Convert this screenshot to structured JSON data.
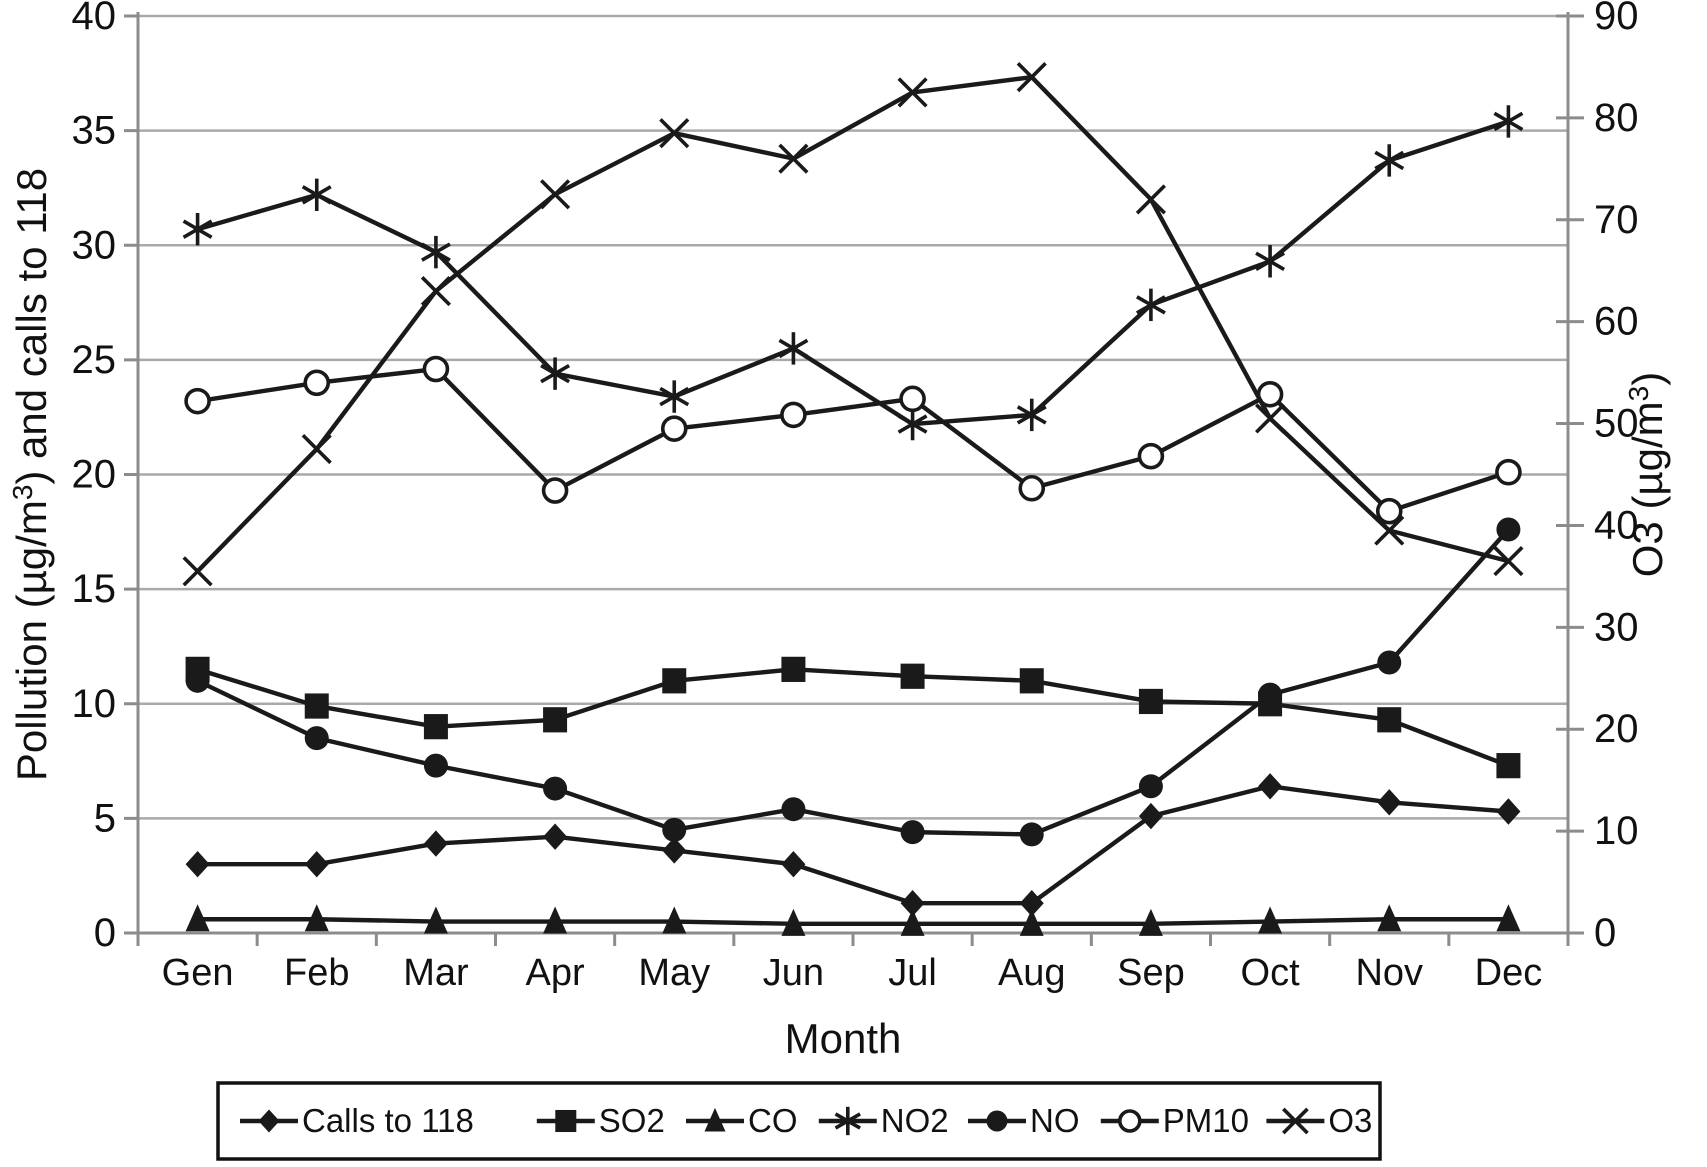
{
  "chart_data": {
    "type": "line",
    "title": "",
    "x_axis": {
      "label": "Month",
      "categories": [
        "Gen",
        "Feb",
        "Mar",
        "Apr",
        "May",
        "Jun",
        "Jul",
        "Aug",
        "Sep",
        "Oct",
        "Nov",
        "Dec"
      ]
    },
    "y_left_axis": {
      "label_prefix": "Pollution (µg/m",
      "label_sup": "3",
      "label_suffix": ") and calls to 118",
      "min": 0,
      "max": 40,
      "tick_step": 5,
      "ticks": [
        "0",
        "5",
        "10",
        "15",
        "20",
        "25",
        "30",
        "35",
        "40"
      ]
    },
    "y_right_axis": {
      "label_prefix": "O3 (µg/m",
      "label_sup": "3",
      "label_suffix": ")",
      "min": 0,
      "max": 90,
      "tick_step": 10,
      "ticks": [
        "0",
        "10",
        "20",
        "30",
        "40",
        "50",
        "60",
        "70",
        "80",
        "90"
      ]
    },
    "grid": "horizontal-major-left",
    "legend_position": "bottom",
    "series": [
      {
        "name": "Calls to 118",
        "marker": "diamond",
        "axis": "left",
        "values": [
          3.0,
          3.0,
          3.9,
          4.2,
          3.6,
          3.0,
          1.3,
          1.3,
          5.1,
          6.4,
          5.7,
          5.3
        ]
      },
      {
        "name": "SO2",
        "marker": "square",
        "axis": "left",
        "values": [
          11.5,
          9.9,
          9.0,
          9.3,
          11.0,
          11.5,
          11.2,
          11.0,
          10.1,
          10.0,
          9.3,
          7.3
        ]
      },
      {
        "name": "CO",
        "marker": "triangle",
        "axis": "left",
        "values": [
          0.6,
          0.6,
          0.5,
          0.5,
          0.5,
          0.4,
          0.4,
          0.4,
          0.4,
          0.5,
          0.6,
          0.6
        ]
      },
      {
        "name": "NO2",
        "marker": "asterisk",
        "axis": "left",
        "values": [
          30.7,
          32.2,
          29.7,
          24.4,
          23.4,
          25.5,
          22.2,
          22.6,
          27.4,
          29.3,
          33.7,
          35.4
        ]
      },
      {
        "name": "NO",
        "marker": "circle-filled",
        "axis": "left",
        "values": [
          11.0,
          8.5,
          7.3,
          6.3,
          4.5,
          5.4,
          4.4,
          4.3,
          6.4,
          10.4,
          11.8,
          17.6
        ]
      },
      {
        "name": "PM10",
        "marker": "circle-open",
        "axis": "left",
        "values": [
          23.2,
          24.0,
          24.6,
          19.3,
          22.0,
          22.6,
          23.3,
          19.4,
          20.8,
          23.5,
          18.4,
          20.1
        ]
      },
      {
        "name": "O3",
        "marker": "x-cross",
        "axis": "right",
        "values": [
          35.5,
          47.5,
          63,
          72.5,
          78.5,
          76,
          82.5,
          84,
          72,
          50.5,
          39.5,
          36.5
        ]
      }
    ],
    "colors": {
      "line": "#1a1a1a",
      "marker": "#1a1a1a",
      "grid": "#a9a9a9",
      "axis": "#8c8c8c",
      "text": "#111111",
      "background": "#ffffff",
      "legend_border": "#111111"
    }
  }
}
